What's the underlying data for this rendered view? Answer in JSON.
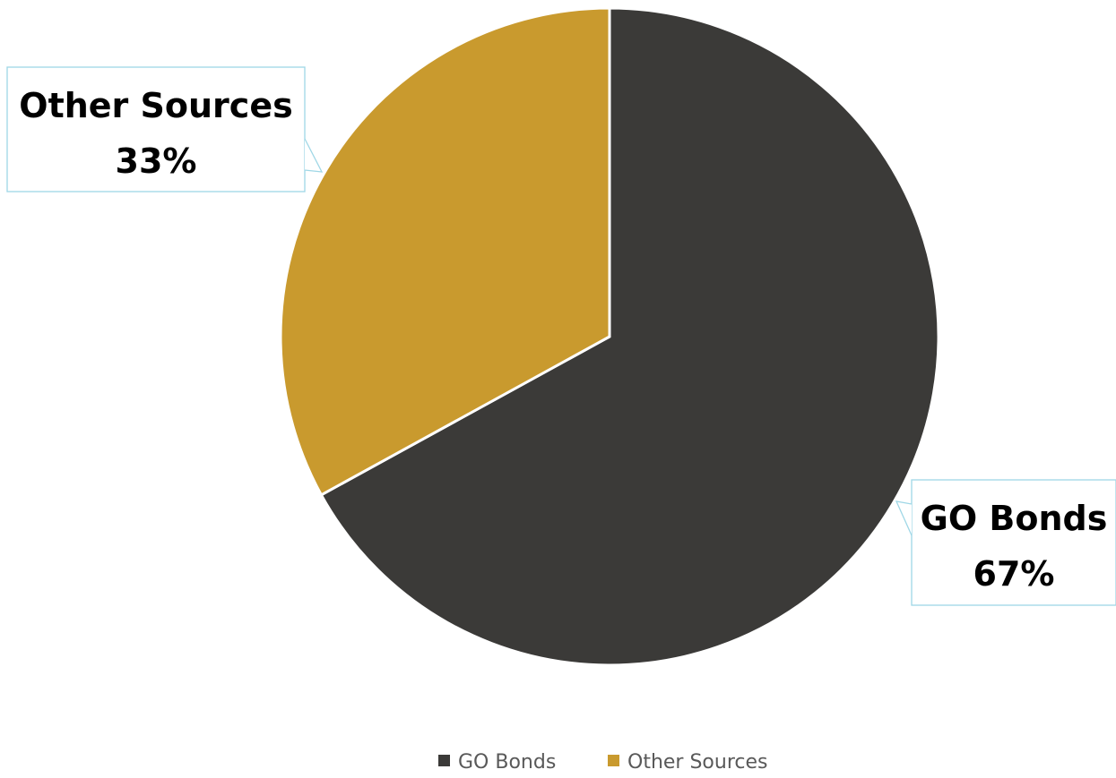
{
  "chart_data": {
    "type": "pie",
    "title": "",
    "categories": [
      "GO Bonds",
      "Other Sources"
    ],
    "values": [
      67,
      33
    ],
    "unit": "%",
    "colors": [
      "#3b3a38",
      "#c99a2e"
    ],
    "data_labels": [
      {
        "name": "GO Bonds",
        "value": "67%"
      },
      {
        "name": "Other Sources",
        "value": "33%"
      }
    ],
    "legend": {
      "position": "bottom",
      "entries": [
        "GO Bonds",
        "Other Sources"
      ]
    },
    "callout_border_color": "#9fd7e6",
    "slice_separator_color": "#ffffff"
  }
}
